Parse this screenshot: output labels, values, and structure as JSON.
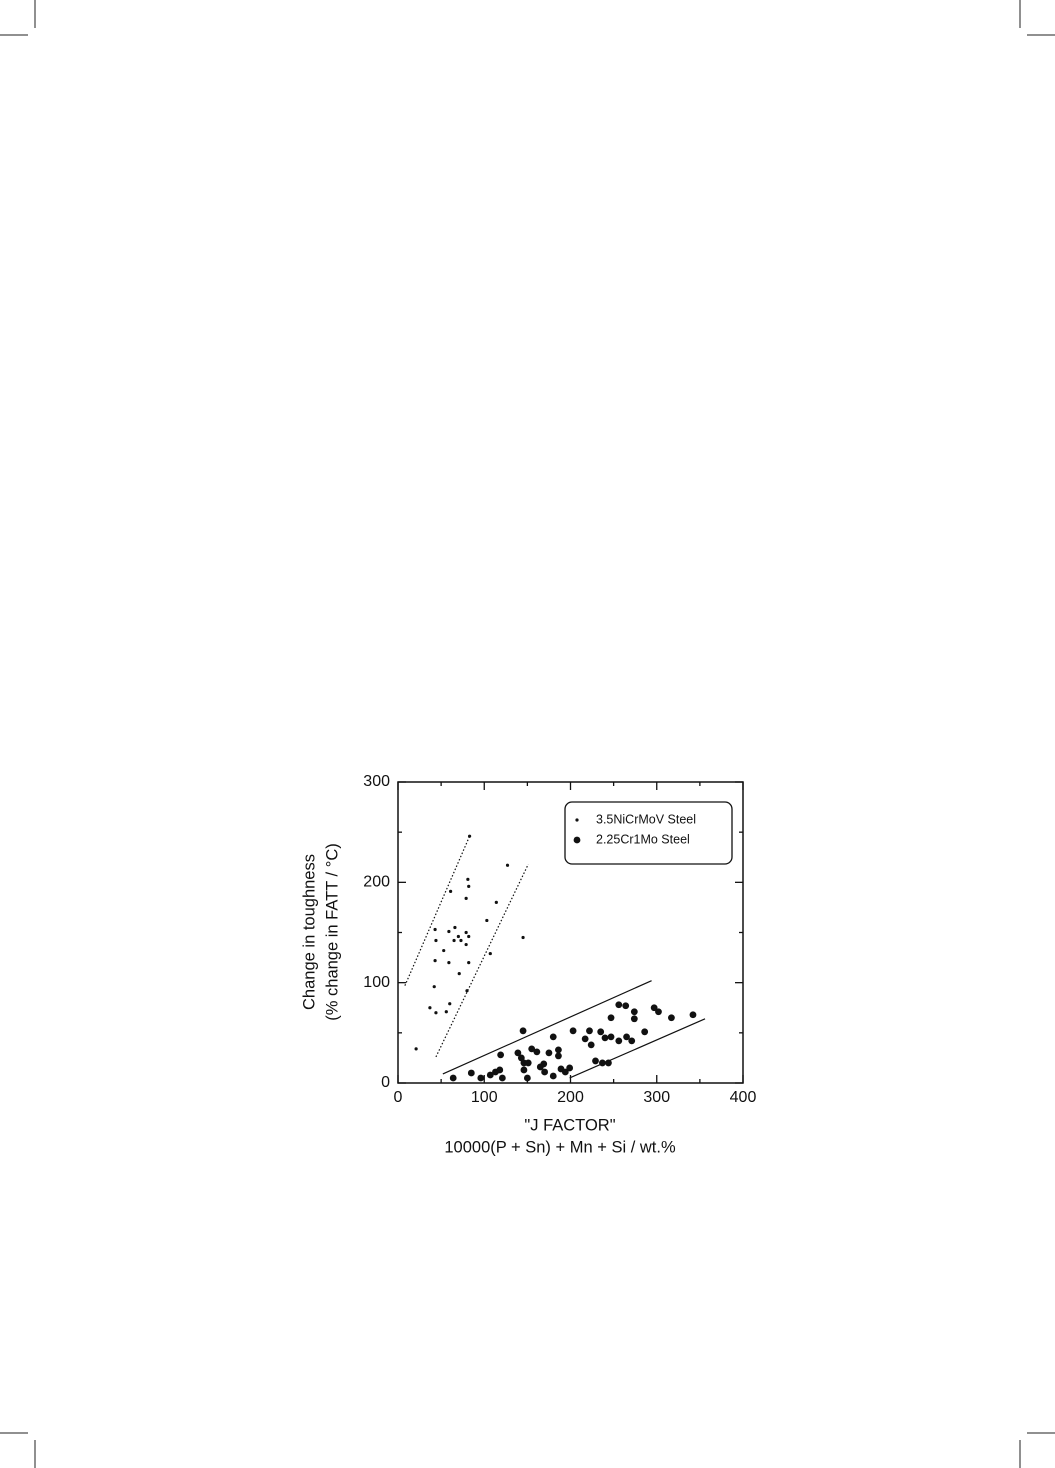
{
  "chart_data": {
    "type": "scatter",
    "ylabel": [
      "Change in toughness",
      "(% change in FATT / °C)"
    ],
    "xlabel": [
      "\"J FACTOR\"",
      "10000(P + Sn)  + Mn + Si / wt.%"
    ],
    "xlim": [
      0,
      400
    ],
    "ylim": [
      0,
      300
    ],
    "xticks": [
      0,
      100,
      200,
      300,
      400
    ],
    "yticks": [
      0,
      100,
      200,
      300
    ],
    "xminorticks": [
      50,
      150,
      250,
      350
    ],
    "yminorticks": [
      50,
      150,
      250
    ],
    "legend": "upper right",
    "series": [
      {
        "name": "3.5NiCrMoV Steel",
        "color": "#111",
        "marker_size": 1.6,
        "x": [
          21,
          83,
          127,
          81,
          82,
          79,
          61,
          114,
          43,
          44,
          66,
          59,
          70,
          79,
          82,
          65,
          73,
          79,
          103,
          145,
          53,
          107,
          43,
          59,
          82,
          71,
          42,
          80,
          60,
          37,
          44,
          56
        ],
        "y": [
          34,
          246,
          217,
          203,
          196,
          184,
          191,
          180,
          153,
          142,
          155,
          151,
          146,
          150,
          146,
          142,
          142,
          138,
          162,
          145,
          132,
          129,
          122,
          120,
          120,
          109,
          96,
          92,
          79,
          75,
          70,
          71
        ]
      },
      {
        "name": "2.25Cr1Mo Steel",
        "color": "#111",
        "marker_size": 3.4,
        "x": [
          145,
          64,
          85,
          96,
          107,
          113,
          118,
          119,
          121,
          139,
          143,
          146,
          146,
          150,
          155,
          161,
          151,
          165,
          169,
          170,
          175,
          180,
          180,
          186,
          186,
          189,
          194,
          199,
          203,
          217,
          222,
          224,
          229,
          235,
          237,
          240,
          244,
          247,
          247,
          256,
          256,
          264,
          265,
          271,
          274,
          274,
          286,
          297,
          302,
          317,
          342
        ],
        "y": [
          52,
          5,
          10,
          5,
          8,
          11,
          13,
          28,
          5,
          30,
          25,
          20,
          13,
          5,
          34,
          31,
          20,
          16,
          19,
          11,
          30,
          46,
          7,
          33,
          27,
          14,
          11,
          15,
          52,
          44,
          52,
          38,
          22,
          51,
          20,
          45,
          20,
          46,
          65,
          78,
          42,
          77,
          46,
          42,
          71,
          64,
          51,
          75,
          71,
          65,
          68
        ]
      }
    ],
    "guide_lines": [
      {
        "style": "dotted",
        "x": [
          8,
          83
        ],
        "y": [
          97,
          246
        ]
      },
      {
        "style": "dotted",
        "x": [
          44,
          151
        ],
        "y": [
          26,
          218
        ]
      },
      {
        "style": "solid",
        "x": [
          52,
          294
        ],
        "y": [
          9,
          102
        ]
      },
      {
        "style": "solid",
        "x": [
          199,
          356
        ],
        "y": [
          5,
          64
        ]
      }
    ]
  }
}
